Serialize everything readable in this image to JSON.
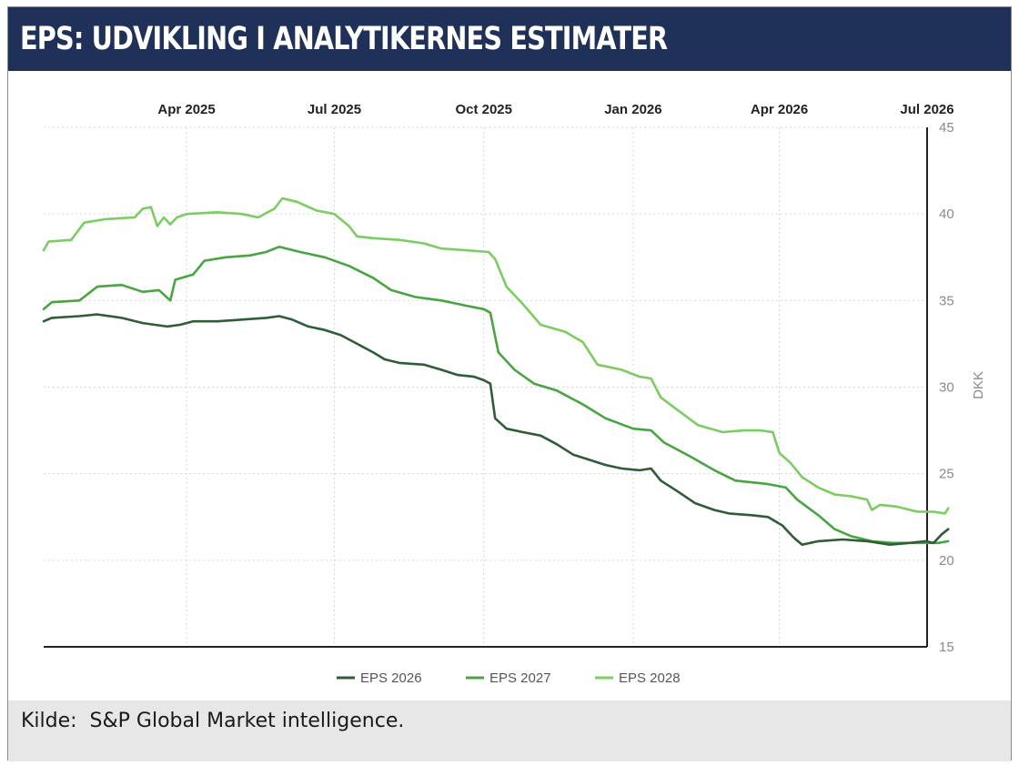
{
  "header": {
    "title": "EPS: UDVIKLING I ANALYTIKERNES ESTIMATER"
  },
  "footer": {
    "source": "Kilde:  S&P Global Market intelligence."
  },
  "chart_data": {
    "type": "line",
    "xlabel": "",
    "ylabel": "DKK",
    "ylim": [
      15,
      45
    ],
    "yticks": [
      15,
      20,
      25,
      30,
      35,
      40,
      45
    ],
    "xlim": [
      "2025-01-03",
      "2026-07-01"
    ],
    "xticks": [
      {
        "date": "2025-04-01",
        "label": "Apr 2025"
      },
      {
        "date": "2025-07-01",
        "label": "Jul 2025"
      },
      {
        "date": "2025-10-01",
        "label": "Oct 2025"
      },
      {
        "date": "2026-01-01",
        "label": "Jan 2026"
      },
      {
        "date": "2026-04-01",
        "label": "Apr 2026"
      },
      {
        "date": "2026-07-01",
        "label": "Jul 2026"
      }
    ],
    "grid": true,
    "legend_position": "bottom",
    "series": [
      {
        "name": "EPS 2026",
        "color": "#2e5d37",
        "points": [
          [
            "2025-01-03",
            33.8
          ],
          [
            "2025-01-08",
            34.0
          ],
          [
            "2025-01-25",
            34.1
          ],
          [
            "2025-02-05",
            34.2
          ],
          [
            "2025-02-20",
            34.0
          ],
          [
            "2025-03-05",
            33.7
          ],
          [
            "2025-03-20",
            33.5
          ],
          [
            "2025-03-28",
            33.6
          ],
          [
            "2025-04-05",
            33.8
          ],
          [
            "2025-04-20",
            33.8
          ],
          [
            "2025-05-05",
            33.9
          ],
          [
            "2025-05-20",
            34.0
          ],
          [
            "2025-05-28",
            34.1
          ],
          [
            "2025-06-05",
            33.9
          ],
          [
            "2025-06-15",
            33.5
          ],
          [
            "2025-06-25",
            33.3
          ],
          [
            "2025-07-05",
            33.0
          ],
          [
            "2025-07-15",
            32.5
          ],
          [
            "2025-07-25",
            32.0
          ],
          [
            "2025-08-01",
            31.6
          ],
          [
            "2025-08-10",
            31.4
          ],
          [
            "2025-08-25",
            31.3
          ],
          [
            "2025-09-05",
            31.0
          ],
          [
            "2025-09-15",
            30.7
          ],
          [
            "2025-09-25",
            30.6
          ],
          [
            "2025-10-01",
            30.4
          ],
          [
            "2025-10-05",
            30.2
          ],
          [
            "2025-10-08",
            28.2
          ],
          [
            "2025-10-15",
            27.6
          ],
          [
            "2025-10-25",
            27.4
          ],
          [
            "2025-11-05",
            27.2
          ],
          [
            "2025-11-15",
            26.7
          ],
          [
            "2025-11-25",
            26.1
          ],
          [
            "2025-12-05",
            25.8
          ],
          [
            "2025-12-15",
            25.5
          ],
          [
            "2025-12-25",
            25.3
          ],
          [
            "2026-01-05",
            25.2
          ],
          [
            "2026-01-12",
            25.3
          ],
          [
            "2026-01-18",
            24.6
          ],
          [
            "2026-01-28",
            24.0
          ],
          [
            "2026-02-08",
            23.3
          ],
          [
            "2026-02-20",
            22.9
          ],
          [
            "2026-03-01",
            22.7
          ],
          [
            "2026-03-15",
            22.6
          ],
          [
            "2026-03-25",
            22.5
          ],
          [
            "2026-04-03",
            22.0
          ],
          [
            "2026-04-10",
            21.3
          ],
          [
            "2026-04-15",
            20.9
          ],
          [
            "2026-04-25",
            21.1
          ],
          [
            "2026-05-10",
            21.2
          ],
          [
            "2026-05-25",
            21.1
          ],
          [
            "2026-06-08",
            20.9
          ],
          [
            "2026-06-20",
            21.0
          ],
          [
            "2026-06-30",
            21.1
          ],
          [
            "2026-07-05",
            21.0
          ],
          [
            "2026-07-10",
            21.5
          ],
          [
            "2026-07-14",
            21.8
          ]
        ]
      },
      {
        "name": "EPS 2027",
        "color": "#48a542",
        "points": [
          [
            "2025-01-03",
            34.5
          ],
          [
            "2025-01-08",
            34.9
          ],
          [
            "2025-01-25",
            35.0
          ],
          [
            "2025-02-05",
            35.8
          ],
          [
            "2025-02-20",
            35.9
          ],
          [
            "2025-03-05",
            35.5
          ],
          [
            "2025-03-15",
            35.6
          ],
          [
            "2025-03-22",
            35.0
          ],
          [
            "2025-03-25",
            36.2
          ],
          [
            "2025-04-05",
            36.5
          ],
          [
            "2025-04-12",
            37.3
          ],
          [
            "2025-04-25",
            37.5
          ],
          [
            "2025-05-10",
            37.6
          ],
          [
            "2025-05-20",
            37.8
          ],
          [
            "2025-05-28",
            38.1
          ],
          [
            "2025-06-10",
            37.8
          ],
          [
            "2025-06-25",
            37.5
          ],
          [
            "2025-07-10",
            37.0
          ],
          [
            "2025-07-25",
            36.3
          ],
          [
            "2025-08-05",
            35.6
          ],
          [
            "2025-08-20",
            35.2
          ],
          [
            "2025-09-05",
            35.0
          ],
          [
            "2025-09-20",
            34.7
          ],
          [
            "2025-10-01",
            34.5
          ],
          [
            "2025-10-05",
            34.3
          ],
          [
            "2025-10-10",
            32.0
          ],
          [
            "2025-10-20",
            31.0
          ],
          [
            "2025-11-01",
            30.2
          ],
          [
            "2025-11-15",
            29.8
          ],
          [
            "2025-12-01",
            29.0
          ],
          [
            "2025-12-15",
            28.2
          ],
          [
            "2026-01-01",
            27.6
          ],
          [
            "2026-01-12",
            27.5
          ],
          [
            "2026-01-20",
            26.8
          ],
          [
            "2026-02-05",
            26.0
          ],
          [
            "2026-02-20",
            25.2
          ],
          [
            "2026-03-05",
            24.6
          ],
          [
            "2026-03-25",
            24.4
          ],
          [
            "2026-04-05",
            24.2
          ],
          [
            "2026-04-12",
            23.5
          ],
          [
            "2026-04-25",
            22.6
          ],
          [
            "2026-05-05",
            21.8
          ],
          [
            "2026-05-15",
            21.4
          ],
          [
            "2026-05-28",
            21.1
          ],
          [
            "2026-06-10",
            21.0
          ],
          [
            "2026-06-25",
            21.0
          ],
          [
            "2026-07-08",
            21.0
          ],
          [
            "2026-07-14",
            21.1
          ]
        ]
      },
      {
        "name": "EPS 2028",
        "color": "#7ccc62",
        "points": [
          [
            "2025-01-03",
            37.9
          ],
          [
            "2025-01-06",
            38.4
          ],
          [
            "2025-01-20",
            38.5
          ],
          [
            "2025-01-28",
            39.5
          ],
          [
            "2025-02-10",
            39.7
          ],
          [
            "2025-02-28",
            39.8
          ],
          [
            "2025-03-05",
            40.3
          ],
          [
            "2025-03-10",
            40.4
          ],
          [
            "2025-03-14",
            39.3
          ],
          [
            "2025-03-18",
            39.8
          ],
          [
            "2025-03-22",
            39.4
          ],
          [
            "2025-03-26",
            39.8
          ],
          [
            "2025-04-01",
            40.0
          ],
          [
            "2025-04-20",
            40.1
          ],
          [
            "2025-05-05",
            40.0
          ],
          [
            "2025-05-15",
            39.8
          ],
          [
            "2025-05-25",
            40.3
          ],
          [
            "2025-05-30",
            40.9
          ],
          [
            "2025-06-08",
            40.7
          ],
          [
            "2025-06-20",
            40.2
          ],
          [
            "2025-07-01",
            40.0
          ],
          [
            "2025-07-10",
            39.3
          ],
          [
            "2025-07-15",
            38.7
          ],
          [
            "2025-07-25",
            38.6
          ],
          [
            "2025-08-10",
            38.5
          ],
          [
            "2025-08-25",
            38.3
          ],
          [
            "2025-09-05",
            38.0
          ],
          [
            "2025-09-20",
            37.9
          ],
          [
            "2025-10-04",
            37.8
          ],
          [
            "2025-10-08",
            37.4
          ],
          [
            "2025-10-15",
            35.8
          ],
          [
            "2025-10-25",
            34.8
          ],
          [
            "2025-11-05",
            33.6
          ],
          [
            "2025-11-20",
            33.2
          ],
          [
            "2025-12-01",
            32.6
          ],
          [
            "2025-12-10",
            31.3
          ],
          [
            "2025-12-25",
            31.0
          ],
          [
            "2026-01-05",
            30.6
          ],
          [
            "2026-01-12",
            30.5
          ],
          [
            "2026-01-18",
            29.4
          ],
          [
            "2026-01-28",
            28.7
          ],
          [
            "2026-02-10",
            27.8
          ],
          [
            "2026-02-25",
            27.4
          ],
          [
            "2026-03-10",
            27.5
          ],
          [
            "2026-03-20",
            27.5
          ],
          [
            "2026-03-28",
            27.4
          ],
          [
            "2026-04-01",
            26.2
          ],
          [
            "2026-04-08",
            25.6
          ],
          [
            "2026-04-15",
            24.8
          ],
          [
            "2026-04-25",
            24.2
          ],
          [
            "2026-05-05",
            23.8
          ],
          [
            "2026-05-15",
            23.7
          ],
          [
            "2026-05-25",
            23.5
          ],
          [
            "2026-05-28",
            22.9
          ],
          [
            "2026-06-02",
            23.2
          ],
          [
            "2026-06-12",
            23.1
          ],
          [
            "2026-06-25",
            22.8
          ],
          [
            "2026-07-05",
            22.8
          ],
          [
            "2026-07-12",
            22.7
          ],
          [
            "2026-07-14",
            23.0
          ]
        ]
      }
    ]
  }
}
